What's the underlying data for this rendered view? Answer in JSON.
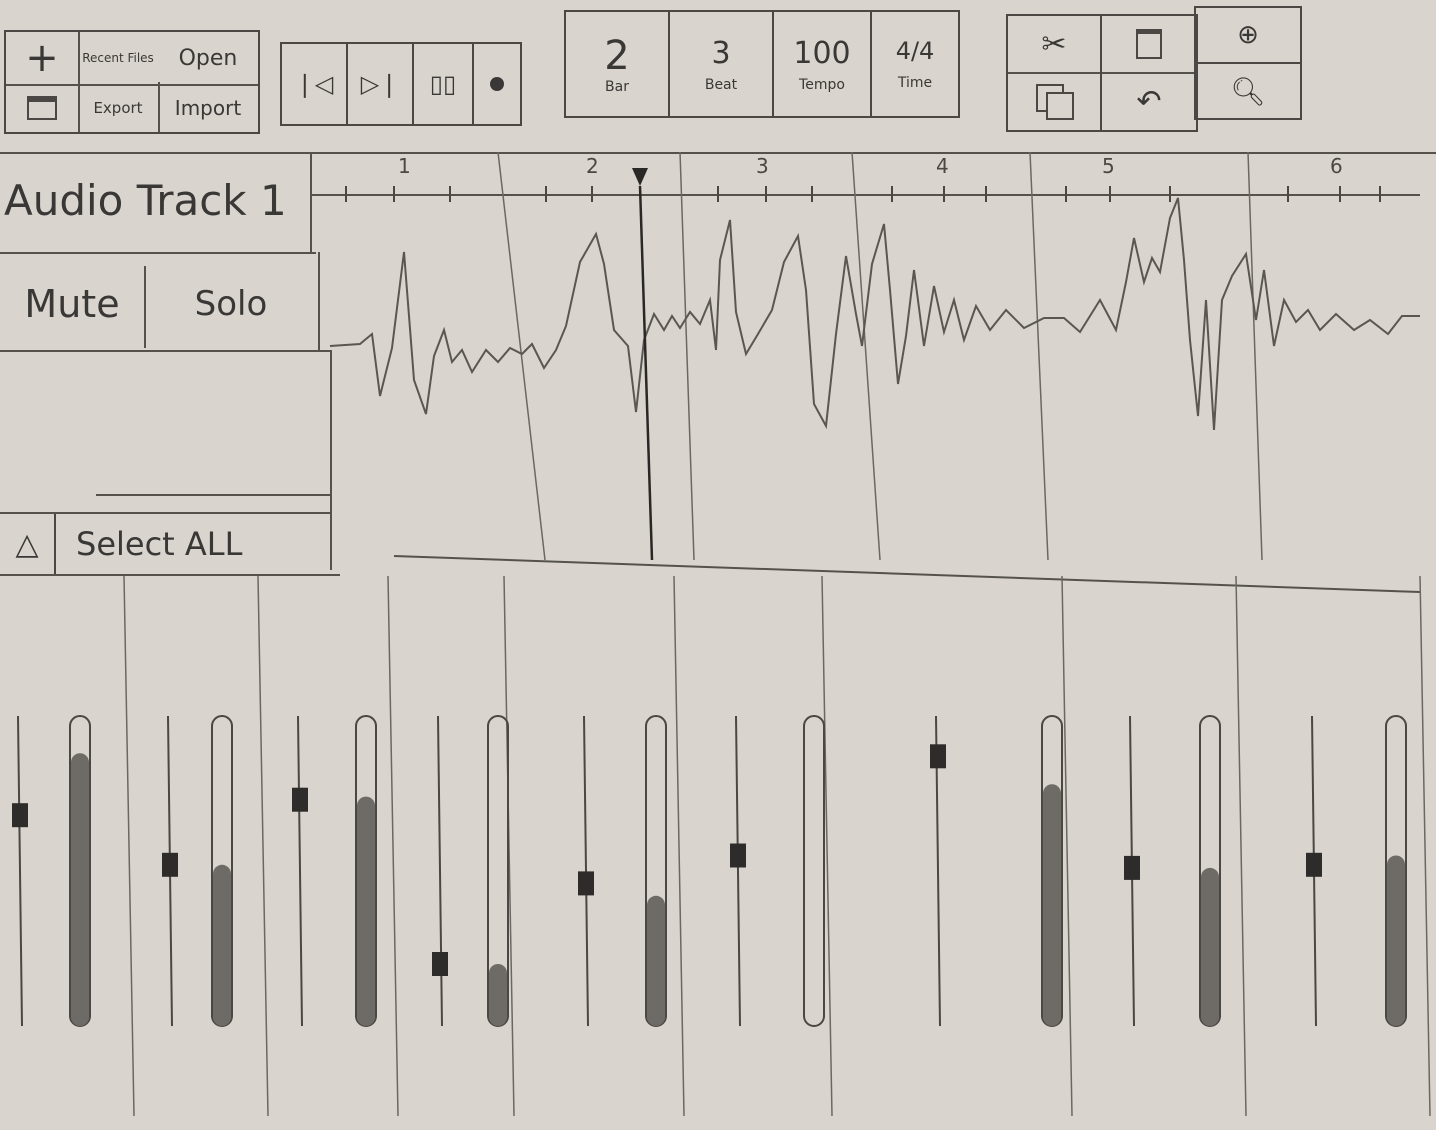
{
  "file_menu": {
    "new_icon": "plus-icon",
    "recent_files": "Recent Files",
    "open": "Open",
    "save_icon": "save-icon",
    "export": "Export",
    "import": "Import"
  },
  "transport": {
    "rewind_icon": "skip-back-icon",
    "play_icon": "play-pause-icon",
    "pause_icon": "pause-icon",
    "record_icon": "record-icon"
  },
  "position": {
    "bar_value": "2",
    "bar_label": "Bar",
    "beat_value": "3",
    "beat_label": "Beat",
    "tempo_value": "100",
    "tempo_label": "Tempo",
    "time_value": "4/4",
    "time_label": "Time"
  },
  "edit_tools": {
    "cut_icon": "scissors-icon",
    "paste_icon": "clipboard-icon",
    "copy_icon": "copy-icon",
    "undo_icon": "undo-icon",
    "zoom_in_icon": "zoom-in-icon",
    "zoom_out_icon": "zoom-out-icon"
  },
  "ruler": {
    "bars": [
      "1",
      "2",
      "3",
      "4",
      "5",
      "6"
    ]
  },
  "track": {
    "name": "Audio Track 1",
    "mute": "Mute",
    "solo": "Solo",
    "collapse_icon": "triangle-up-icon",
    "select_all": "Select ALL"
  },
  "mixer": {
    "channels": [
      {
        "fader": 0.68,
        "level": 0.88
      },
      {
        "fader": 0.52,
        "level": 0.52
      },
      {
        "fader": 0.73,
        "level": 0.74
      },
      {
        "fader": 0.2,
        "level": 0.2
      },
      {
        "fader": 0.46,
        "level": 0.42
      },
      {
        "fader": 0.55,
        "level": 0.0
      },
      {
        "fader": 0.87,
        "level": 0.78
      },
      {
        "fader": 0.51,
        "level": 0.51
      },
      {
        "fader": 0.52,
        "level": 0.55
      }
    ]
  }
}
